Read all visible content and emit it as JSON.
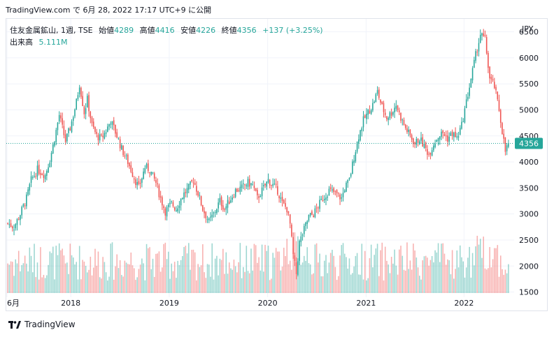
{
  "header": {
    "source": "TradingView.com",
    "meta": "で 6月 28, 2022 17:17 UTC+9 に公開"
  },
  "legend": {
    "symbol": "住友金属鉱山, 1週, TSE",
    "open_label": "始値",
    "open": "4289",
    "high_label": "高値",
    "high": "4416",
    "low_label": "安値",
    "low": "4226",
    "close_label": "終値",
    "close": "4356",
    "change": "+137 (+3.25%)",
    "volume_label": "出来高",
    "volume": "5.111M"
  },
  "currency": "JPY",
  "price_badge": "4356",
  "brand": "TradingView",
  "colors": {
    "up": "#26a69a",
    "down": "#ef5350",
    "grid": "#f0f3fa",
    "text": "#131722"
  },
  "chart_data": {
    "type": "candlestick",
    "title": "住友金属鉱山, 1週, TSE",
    "interval": "1週",
    "ylim": [
      1400,
      6750
    ],
    "y_ticks": [
      "6500",
      "6000",
      "5500",
      "5000",
      "4500",
      "4000",
      "3500",
      "3000",
      "2500",
      "2000",
      "1500"
    ],
    "x_ticks": [
      {
        "label": "6月",
        "pos": 0.0
      },
      {
        "label": "2018",
        "pos": 0.127
      },
      {
        "label": "2019",
        "pos": 0.323
      },
      {
        "label": "2020",
        "pos": 0.519
      },
      {
        "label": "2021",
        "pos": 0.715
      },
      {
        "label": "2022",
        "pos": 0.91
      }
    ],
    "last_close": 4356,
    "grid": true,
    "anchors": [
      [
        0,
        2820
      ],
      [
        4,
        2750
      ],
      [
        8,
        3000
      ],
      [
        12,
        3300
      ],
      [
        15,
        3650
      ],
      [
        19,
        3850
      ],
      [
        24,
        3750
      ],
      [
        27,
        4050
      ],
      [
        30,
        4450
      ],
      [
        33,
        4900
      ],
      [
        37,
        4400
      ],
      [
        40,
        4650
      ],
      [
        44,
        5150
      ],
      [
        46,
        5500
      ],
      [
        49,
        4950
      ],
      [
        51,
        5200
      ],
      [
        54,
        4700
      ],
      [
        57,
        4500
      ],
      [
        60,
        4450
      ],
      [
        63,
        4600
      ],
      [
        66,
        4800
      ],
      [
        70,
        4500
      ],
      [
        73,
        4250
      ],
      [
        77,
        4000
      ],
      [
        81,
        3700
      ],
      [
        84,
        3500
      ],
      [
        88,
        3900
      ],
      [
        91,
        3850
      ],
      [
        95,
        3600
      ],
      [
        98,
        3300
      ],
      [
        101,
        3050
      ],
      [
        105,
        3200
      ],
      [
        108,
        3100
      ],
      [
        112,
        3350
      ],
      [
        116,
        3500
      ],
      [
        119,
        3650
      ],
      [
        122,
        3400
      ],
      [
        125,
        3100
      ],
      [
        129,
        2850
      ],
      [
        132,
        3000
      ],
      [
        136,
        3250
      ],
      [
        139,
        3100
      ],
      [
        143,
        3300
      ],
      [
        146,
        3450
      ],
      [
        150,
        3500
      ],
      [
        154,
        3600
      ],
      [
        157,
        3550
      ],
      [
        160,
        3300
      ],
      [
        163,
        3450
      ],
      [
        167,
        3650
      ],
      [
        170,
        3550
      ],
      [
        173,
        3450
      ],
      [
        176,
        3200
      ],
      [
        179,
        3100
      ],
      [
        181,
        2800
      ],
      [
        183,
        2200
      ],
      [
        185,
        1850
      ],
      [
        187,
        2450
      ],
      [
        190,
        2700
      ],
      [
        193,
        2950
      ],
      [
        196,
        3000
      ],
      [
        199,
        3150
      ],
      [
        202,
        3300
      ],
      [
        206,
        3450
      ],
      [
        210,
        3400
      ],
      [
        214,
        3300
      ],
      [
        216,
        3500
      ],
      [
        219,
        3650
      ],
      [
        222,
        4100
      ],
      [
        225,
        4500
      ],
      [
        228,
        4800
      ],
      [
        231,
        4950
      ],
      [
        234,
        5100
      ],
      [
        237,
        5350
      ],
      [
        240,
        5050
      ],
      [
        243,
        4850
      ],
      [
        246,
        4950
      ],
      [
        249,
        5100
      ],
      [
        252,
        4850
      ],
      [
        255,
        4650
      ],
      [
        258,
        4500
      ],
      [
        261,
        4350
      ],
      [
        264,
        4450
      ],
      [
        267,
        4300
      ],
      [
        270,
        4150
      ],
      [
        273,
        4350
      ],
      [
        276,
        4500
      ],
      [
        279,
        4550
      ],
      [
        282,
        4450
      ],
      [
        285,
        4550
      ],
      [
        288,
        4450
      ],
      [
        291,
        4700
      ],
      [
        294,
        5150
      ],
      [
        297,
        5600
      ],
      [
        300,
        6050
      ],
      [
        303,
        6450
      ],
      [
        306,
        6350
      ],
      [
        309,
        5600
      ],
      [
        312,
        5450
      ],
      [
        315,
        5000
      ],
      [
        317,
        4600
      ],
      [
        319,
        4200
      ],
      [
        321,
        4356
      ]
    ],
    "candles_count": 322
  }
}
